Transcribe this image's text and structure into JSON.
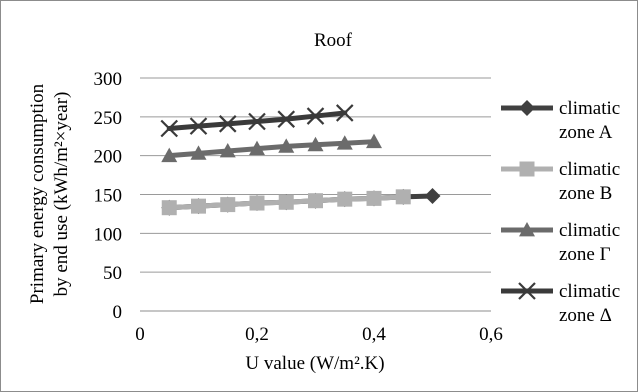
{
  "chart_data": {
    "type": "line",
    "title": "Roof",
    "xlabel": "U value (W/m².K)",
    "ylabel_lines": [
      "Primary energy consumption",
      "by end use (kWh/m²×year)"
    ],
    "xlim": [
      0,
      0.6
    ],
    "ylim": [
      0,
      300
    ],
    "x_ticks": [
      0,
      0.2,
      0.4,
      0.6
    ],
    "x_tick_labels": [
      "0",
      "0,2",
      "0,4",
      "0,6"
    ],
    "y_ticks": [
      0,
      50,
      100,
      150,
      200,
      250,
      300
    ],
    "y_tick_labels": [
      "0",
      "50",
      "100",
      "150",
      "200",
      "250",
      "300"
    ],
    "grid": "horizontal",
    "legend_position": "right",
    "series": [
      {
        "name_lines": [
          "climatic",
          "zone A"
        ],
        "marker": "diamond",
        "color": "#404040",
        "x": [
          0.05,
          0.1,
          0.15,
          0.2,
          0.25,
          0.3,
          0.35,
          0.4,
          0.45,
          0.5
        ],
        "y": [
          133,
          135,
          137,
          139,
          140,
          142,
          144,
          145,
          147,
          148
        ]
      },
      {
        "name_lines": [
          "climatic",
          "zone B"
        ],
        "marker": "square",
        "color": "#b0b0b0",
        "x": [
          0.05,
          0.1,
          0.15,
          0.2,
          0.25,
          0.3,
          0.35,
          0.4,
          0.45
        ],
        "y": [
          133,
          135,
          137,
          139,
          140,
          142,
          144,
          145,
          147
        ]
      },
      {
        "name_lines": [
          "climatic",
          "zone Γ"
        ],
        "marker": "triangle",
        "color": "#6b6b6b",
        "x": [
          0.05,
          0.1,
          0.15,
          0.2,
          0.25,
          0.3,
          0.35,
          0.4
        ],
        "y": [
          200,
          203,
          206,
          209,
          212,
          214,
          216,
          218
        ]
      },
      {
        "name_lines": [
          "climatic",
          "zone Δ"
        ],
        "marker": "x",
        "color": "#3a3a3a",
        "x": [
          0.05,
          0.1,
          0.15,
          0.2,
          0.25,
          0.3,
          0.35
        ],
        "y": [
          235,
          238,
          241,
          244,
          247,
          251,
          255
        ]
      }
    ]
  }
}
